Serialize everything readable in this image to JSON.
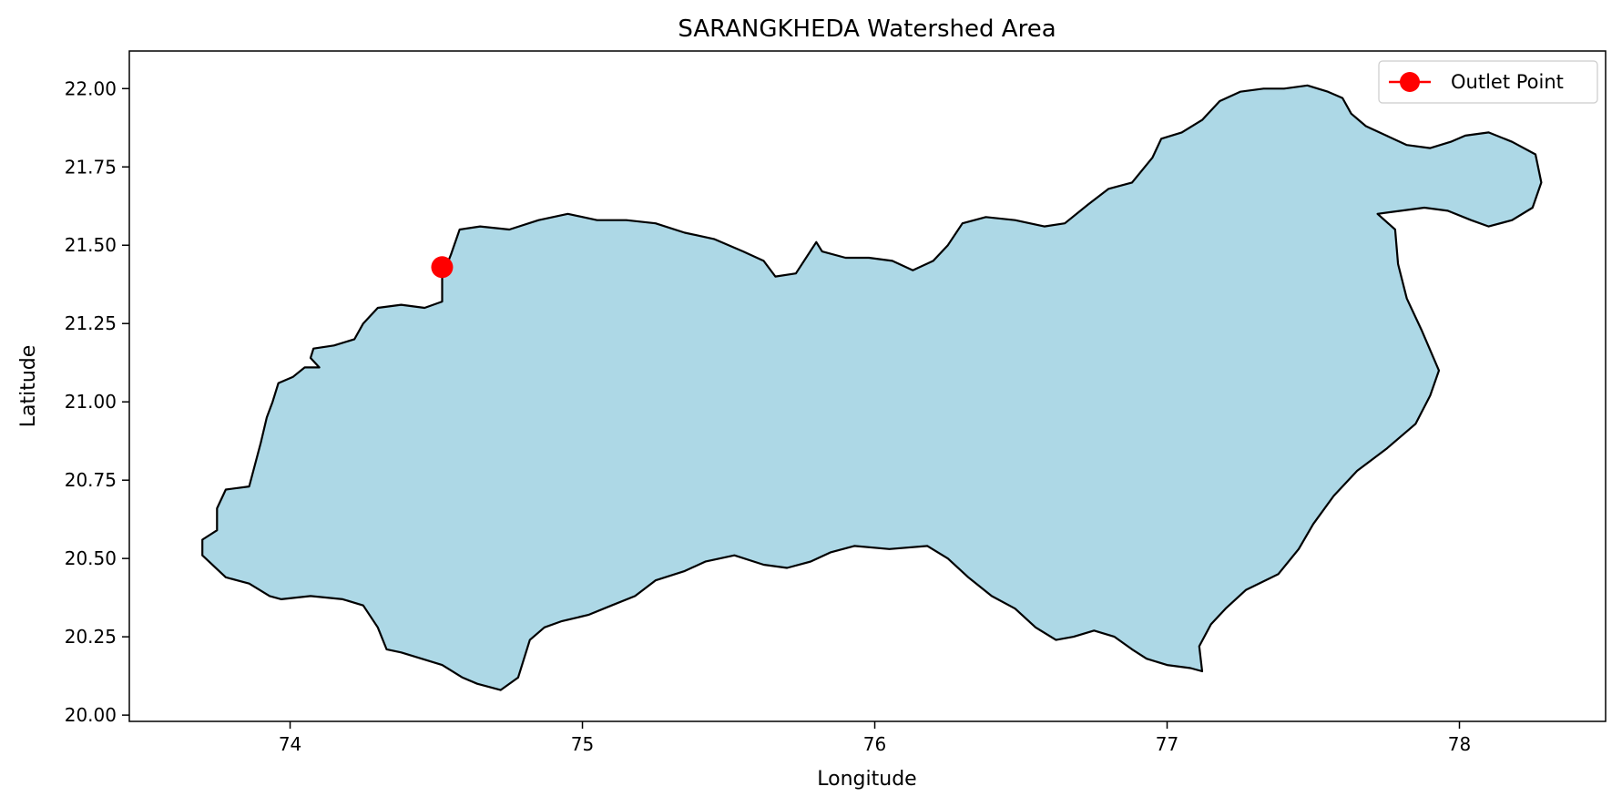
{
  "chart_data": {
    "type": "map",
    "title": "SARANGKHEDA Watershed Area",
    "xlabel": "Longitude",
    "ylabel": "Latitude",
    "xlim": [
      73.45,
      78.5
    ],
    "ylim": [
      19.98,
      22.12
    ],
    "x_ticks": [
      74,
      75,
      76,
      77,
      78
    ],
    "x_tick_labels": [
      "74",
      "75",
      "76",
      "77",
      "78"
    ],
    "y_ticks": [
      20.0,
      20.25,
      20.5,
      20.75,
      21.0,
      21.25,
      21.5,
      21.75,
      22.0
    ],
    "y_tick_labels": [
      "20.00",
      "20.25",
      "20.50",
      "20.75",
      "21.00",
      "21.25",
      "21.50",
      "21.75",
      "22.00"
    ],
    "grid": false,
    "legend_position": "top-right",
    "legend": [
      {
        "label": "Outlet Point",
        "color": "#ff0000",
        "marker": "circle",
        "line": true
      }
    ],
    "watershed": {
      "fill_color": "#add8e6",
      "edge_color": "#000000",
      "boundary": [
        [
          73.7,
          20.51
        ],
        [
          73.78,
          20.44
        ],
        [
          73.86,
          20.42
        ],
        [
          73.93,
          20.38
        ],
        [
          73.97,
          20.37
        ],
        [
          74.07,
          20.38
        ],
        [
          74.18,
          20.37
        ],
        [
          74.25,
          20.35
        ],
        [
          74.3,
          20.28
        ],
        [
          74.33,
          20.21
        ],
        [
          74.38,
          20.2
        ],
        [
          74.45,
          20.18
        ],
        [
          74.52,
          20.16
        ],
        [
          74.59,
          20.12
        ],
        [
          74.64,
          20.1
        ],
        [
          74.72,
          20.08
        ],
        [
          74.78,
          20.12
        ],
        [
          74.82,
          20.24
        ],
        [
          74.87,
          20.28
        ],
        [
          74.93,
          20.3
        ],
        [
          75.02,
          20.32
        ],
        [
          75.1,
          20.35
        ],
        [
          75.18,
          20.38
        ],
        [
          75.25,
          20.43
        ],
        [
          75.35,
          20.46
        ],
        [
          75.42,
          20.49
        ],
        [
          75.52,
          20.51
        ],
        [
          75.62,
          20.48
        ],
        [
          75.7,
          20.47
        ],
        [
          75.78,
          20.49
        ],
        [
          75.85,
          20.52
        ],
        [
          75.93,
          20.54
        ],
        [
          76.05,
          20.53
        ],
        [
          76.18,
          20.54
        ],
        [
          76.25,
          20.5
        ],
        [
          76.32,
          20.44
        ],
        [
          76.4,
          20.38
        ],
        [
          76.48,
          20.34
        ],
        [
          76.55,
          20.28
        ],
        [
          76.62,
          20.24
        ],
        [
          76.68,
          20.25
        ],
        [
          76.75,
          20.27
        ],
        [
          76.82,
          20.25
        ],
        [
          76.88,
          20.21
        ],
        [
          76.93,
          20.18
        ],
        [
          77.0,
          20.16
        ],
        [
          77.08,
          20.15
        ],
        [
          77.12,
          20.14
        ],
        [
          77.11,
          20.22
        ],
        [
          77.15,
          20.29
        ],
        [
          77.2,
          20.34
        ],
        [
          77.27,
          20.4
        ],
        [
          77.38,
          20.45
        ],
        [
          77.45,
          20.53
        ],
        [
          77.5,
          20.61
        ],
        [
          77.57,
          20.7
        ],
        [
          77.65,
          20.78
        ],
        [
          77.75,
          20.85
        ],
        [
          77.85,
          20.93
        ],
        [
          77.9,
          21.02
        ],
        [
          77.93,
          21.1
        ],
        [
          77.87,
          21.23
        ],
        [
          77.82,
          21.33
        ],
        [
          77.79,
          21.44
        ],
        [
          77.78,
          21.55
        ],
        [
          77.72,
          21.6
        ],
        [
          77.8,
          21.61
        ],
        [
          77.88,
          21.62
        ],
        [
          77.96,
          21.61
        ],
        [
          78.04,
          21.58
        ],
        [
          78.1,
          21.56
        ],
        [
          78.18,
          21.58
        ],
        [
          78.25,
          21.62
        ],
        [
          78.28,
          21.7
        ],
        [
          78.26,
          21.79
        ],
        [
          78.18,
          21.83
        ],
        [
          78.1,
          21.86
        ],
        [
          78.02,
          21.85
        ],
        [
          77.97,
          21.83
        ],
        [
          77.9,
          21.81
        ],
        [
          77.82,
          21.82
        ],
        [
          77.75,
          21.85
        ],
        [
          77.68,
          21.88
        ],
        [
          77.63,
          21.92
        ],
        [
          77.6,
          21.97
        ],
        [
          77.55,
          21.99
        ],
        [
          77.48,
          22.01
        ],
        [
          77.4,
          22.0
        ],
        [
          77.33,
          22.0
        ],
        [
          77.25,
          21.99
        ],
        [
          77.18,
          21.96
        ],
        [
          77.12,
          21.9
        ],
        [
          77.05,
          21.86
        ],
        [
          76.98,
          21.84
        ],
        [
          76.95,
          21.78
        ],
        [
          76.88,
          21.7
        ],
        [
          76.8,
          21.68
        ],
        [
          76.73,
          21.63
        ],
        [
          76.65,
          21.57
        ],
        [
          76.58,
          21.56
        ],
        [
          76.48,
          21.58
        ],
        [
          76.38,
          21.59
        ],
        [
          76.3,
          21.57
        ],
        [
          76.25,
          21.5
        ],
        [
          76.2,
          21.45
        ],
        [
          76.13,
          21.42
        ],
        [
          76.06,
          21.45
        ],
        [
          75.98,
          21.46
        ],
        [
          75.9,
          21.46
        ],
        [
          75.82,
          21.48
        ],
        [
          75.8,
          21.51
        ],
        [
          75.73,
          21.41
        ],
        [
          75.66,
          21.4
        ],
        [
          75.62,
          21.45
        ],
        [
          75.55,
          21.48
        ],
        [
          75.45,
          21.52
        ],
        [
          75.35,
          21.54
        ],
        [
          75.25,
          21.57
        ],
        [
          75.15,
          21.58
        ],
        [
          75.05,
          21.58
        ],
        [
          74.95,
          21.6
        ],
        [
          74.85,
          21.58
        ],
        [
          74.75,
          21.55
        ],
        [
          74.65,
          21.56
        ],
        [
          74.58,
          21.55
        ],
        [
          74.55,
          21.47
        ],
        [
          74.52,
          21.4
        ],
        [
          74.52,
          21.32
        ],
        [
          74.46,
          21.3
        ],
        [
          74.38,
          21.31
        ],
        [
          74.3,
          21.3
        ],
        [
          74.25,
          21.25
        ],
        [
          74.22,
          21.2
        ],
        [
          74.15,
          21.18
        ],
        [
          74.08,
          21.17
        ],
        [
          74.07,
          21.14
        ],
        [
          74.1,
          21.11
        ],
        [
          74.05,
          21.11
        ],
        [
          74.01,
          21.08
        ],
        [
          73.96,
          21.06
        ],
        [
          73.94,
          21.0
        ],
        [
          73.92,
          20.95
        ],
        [
          73.9,
          20.87
        ],
        [
          73.88,
          20.8
        ],
        [
          73.86,
          20.73
        ],
        [
          73.78,
          20.72
        ],
        [
          73.75,
          20.66
        ],
        [
          73.75,
          20.59
        ],
        [
          73.7,
          20.56
        ]
      ]
    },
    "outlet_point": {
      "label": "Outlet Point",
      "lon": 74.52,
      "lat": 21.43,
      "color": "#ff0000"
    }
  }
}
